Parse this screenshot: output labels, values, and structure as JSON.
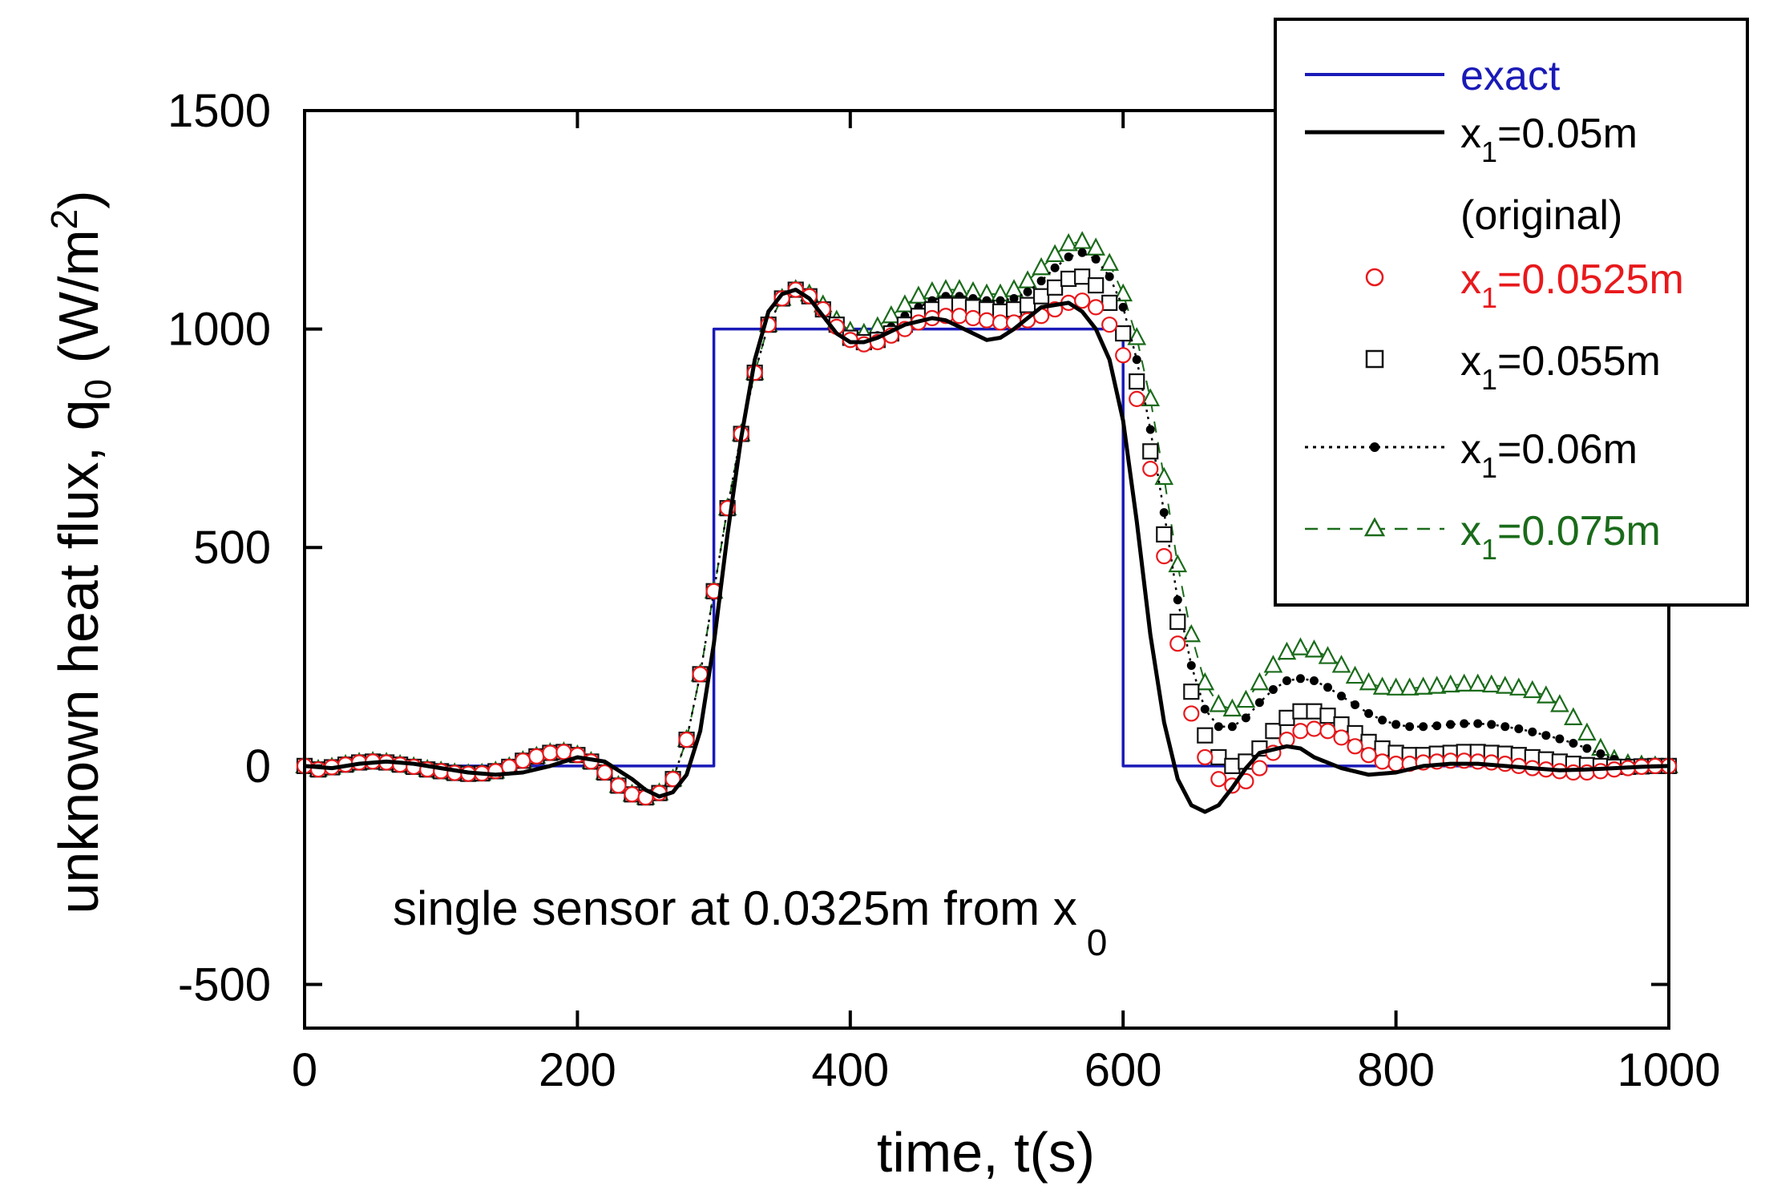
{
  "chart_data": {
    "type": "line",
    "xlabel": "time, t(s)",
    "ylabel_main": "unknown heat flux, q",
    "ylabel_sub": "0",
    "ylabel_unit_pre": " (W/m",
    "ylabel_unit_sup": "2",
    "ylabel_unit_post": ")",
    "xlim": [
      0,
      1000
    ],
    "ylim": [
      -600,
      1500
    ],
    "xticks": [
      0,
      200,
      400,
      600,
      800,
      1000
    ],
    "yticks": [
      -500,
      0,
      500,
      1000,
      1500
    ],
    "grid": false,
    "legend_position": "top-right",
    "annotation": {
      "text": "single sensor  at 0.0325m from x",
      "sub": "0"
    },
    "legend": [
      {
        "id": "exact",
        "main": "exact",
        "sub": "",
        "rest": "",
        "extra": ""
      },
      {
        "id": "x050",
        "main": "x",
        "sub": "1",
        "rest": "=0.05m",
        "extra": "(original)"
      },
      {
        "id": "x0525",
        "main": "x",
        "sub": "1",
        "rest": "=0.0525m",
        "extra": ""
      },
      {
        "id": "x055",
        "main": "x",
        "sub": "1",
        "rest": "=0.055m",
        "extra": ""
      },
      {
        "id": "x060",
        "main": "x",
        "sub": "1",
        "rest": "=0.06m",
        "extra": ""
      },
      {
        "id": "x075",
        "main": "x",
        "sub": "1",
        "rest": "=0.075m",
        "extra": ""
      }
    ],
    "series": [
      {
        "id": "exact",
        "color": "#1a1ab8",
        "style": "solid",
        "marker": "none",
        "x": [
          0,
          300,
          300,
          600,
          600,
          1000
        ],
        "y": [
          0,
          0,
          1000,
          1000,
          0,
          0
        ]
      },
      {
        "id": "x050",
        "color": "#000000",
        "style": "solid",
        "marker": "none",
        "x": [
          0,
          20,
          40,
          60,
          80,
          100,
          120,
          140,
          160,
          180,
          200,
          220,
          240,
          250,
          260,
          270,
          280,
          290,
          300,
          310,
          320,
          330,
          340,
          350,
          360,
          370,
          380,
          390,
          400,
          410,
          420,
          440,
          460,
          470,
          480,
          500,
          510,
          520,
          540,
          560,
          570,
          580,
          590,
          600,
          610,
          620,
          630,
          640,
          650,
          660,
          670,
          680,
          690,
          700,
          720,
          730,
          740,
          760,
          780,
          800,
          820,
          840,
          860,
          880,
          900,
          920,
          940,
          960,
          980,
          1000
        ],
        "y": [
          0,
          -5,
          5,
          10,
          5,
          -5,
          -15,
          -20,
          -15,
          0,
          20,
          10,
          -30,
          -55,
          -70,
          -60,
          -20,
          80,
          280,
          530,
          750,
          930,
          1040,
          1080,
          1090,
          1070,
          1030,
          990,
          970,
          970,
          980,
          1010,
          1025,
          1020,
          1005,
          975,
          980,
          1000,
          1050,
          1060,
          1040,
          1000,
          930,
          790,
          560,
          300,
          100,
          -30,
          -90,
          -105,
          -90,
          -50,
          -5,
          30,
          45,
          40,
          20,
          -5,
          -20,
          -15,
          0,
          5,
          5,
          0,
          -5,
          -10,
          -8,
          -5,
          -2,
          0
        ]
      },
      {
        "id": "x0525",
        "color": "#e8191c",
        "style": "none",
        "marker": "circle",
        "x": [
          0,
          10,
          20,
          30,
          40,
          50,
          60,
          70,
          80,
          90,
          100,
          110,
          120,
          130,
          140,
          150,
          160,
          170,
          180,
          190,
          200,
          210,
          220,
          230,
          240,
          250,
          260,
          270,
          280,
          290,
          300,
          310,
          320,
          330,
          340,
          350,
          360,
          370,
          380,
          390,
          400,
          410,
          420,
          430,
          440,
          450,
          460,
          470,
          480,
          490,
          500,
          510,
          520,
          530,
          540,
          550,
          560,
          570,
          580,
          590,
          600,
          610,
          620,
          630,
          640,
          650,
          660,
          670,
          680,
          690,
          700,
          710,
          720,
          730,
          740,
          750,
          760,
          770,
          780,
          790,
          800,
          810,
          820,
          830,
          840,
          850,
          860,
          870,
          880,
          890,
          900,
          910,
          920,
          930,
          940,
          950,
          960,
          970,
          980,
          990,
          1000
        ],
        "y": [
          0,
          -8,
          -3,
          3,
          8,
          10,
          8,
          3,
          -2,
          -8,
          -12,
          -16,
          -18,
          -17,
          -12,
          -2,
          12,
          22,
          30,
          32,
          25,
          10,
          -15,
          -45,
          -65,
          -72,
          -62,
          -30,
          60,
          210,
          400,
          590,
          760,
          900,
          1010,
          1070,
          1090,
          1075,
          1045,
          1005,
          975,
          965,
          970,
          985,
          1000,
          1015,
          1025,
          1030,
          1030,
          1025,
          1020,
          1015,
          1015,
          1020,
          1030,
          1045,
          1060,
          1065,
          1050,
          1010,
          940,
          840,
          680,
          480,
          280,
          120,
          20,
          -30,
          -45,
          -35,
          -5,
          30,
          60,
          80,
          85,
          80,
          65,
          45,
          25,
          10,
          5,
          5,
          8,
          10,
          12,
          12,
          10,
          8,
          5,
          0,
          -5,
          -8,
          -12,
          -15,
          -15,
          -12,
          -8,
          -5,
          -2,
          0,
          0
        ]
      },
      {
        "id": "x055",
        "color": "#111111",
        "style": "none",
        "marker": "square",
        "x": [
          0,
          10,
          20,
          30,
          40,
          50,
          60,
          70,
          80,
          90,
          100,
          110,
          120,
          130,
          140,
          150,
          160,
          170,
          180,
          190,
          200,
          210,
          220,
          230,
          240,
          250,
          260,
          270,
          280,
          290,
          300,
          310,
          320,
          330,
          340,
          350,
          360,
          370,
          380,
          390,
          400,
          410,
          420,
          430,
          440,
          450,
          460,
          470,
          480,
          490,
          500,
          510,
          520,
          530,
          540,
          550,
          560,
          570,
          580,
          590,
          600,
          610,
          620,
          630,
          640,
          650,
          660,
          670,
          680,
          690,
          700,
          710,
          720,
          730,
          740,
          750,
          760,
          770,
          780,
          790,
          800,
          810,
          820,
          830,
          840,
          850,
          860,
          870,
          880,
          890,
          900,
          910,
          920,
          930,
          940,
          950,
          960,
          970,
          980,
          990,
          1000
        ],
        "y": [
          0,
          -8,
          -3,
          3,
          8,
          10,
          8,
          3,
          -2,
          -8,
          -12,
          -16,
          -18,
          -17,
          -12,
          -2,
          12,
          22,
          30,
          32,
          25,
          10,
          -15,
          -45,
          -65,
          -72,
          -62,
          -30,
          60,
          210,
          400,
          590,
          760,
          900,
          1010,
          1070,
          1090,
          1075,
          1045,
          1010,
          980,
          970,
          975,
          990,
          1010,
          1030,
          1045,
          1055,
          1055,
          1050,
          1045,
          1040,
          1045,
          1055,
          1075,
          1095,
          1115,
          1120,
          1100,
          1060,
          990,
          880,
          720,
          530,
          330,
          170,
          70,
          20,
          0,
          10,
          40,
          80,
          110,
          125,
          125,
          115,
          95,
          75,
          55,
          40,
          30,
          25,
          25,
          28,
          30,
          32,
          32,
          30,
          28,
          25,
          20,
          15,
          10,
          5,
          2,
          0,
          -2,
          -2,
          -1,
          0,
          0
        ]
      },
      {
        "id": "x060",
        "color": "#000000",
        "style": "dotted",
        "marker": "dot",
        "x": [
          0,
          10,
          20,
          30,
          40,
          50,
          60,
          70,
          80,
          90,
          100,
          110,
          120,
          130,
          140,
          150,
          160,
          170,
          180,
          190,
          200,
          210,
          220,
          230,
          240,
          250,
          260,
          270,
          280,
          290,
          300,
          310,
          320,
          330,
          340,
          350,
          360,
          370,
          380,
          390,
          400,
          410,
          420,
          430,
          440,
          450,
          460,
          470,
          480,
          490,
          500,
          510,
          520,
          530,
          540,
          550,
          560,
          570,
          580,
          590,
          600,
          610,
          620,
          630,
          640,
          650,
          660,
          670,
          680,
          690,
          700,
          710,
          720,
          730,
          740,
          750,
          760,
          770,
          780,
          790,
          800,
          810,
          820,
          830,
          840,
          850,
          860,
          870,
          880,
          890,
          900,
          910,
          920,
          930,
          940,
          950,
          960,
          970,
          980,
          990,
          1000
        ],
        "y": [
          0,
          -8,
          -3,
          3,
          8,
          10,
          8,
          3,
          -2,
          -8,
          -12,
          -16,
          -18,
          -17,
          -12,
          -2,
          12,
          22,
          30,
          32,
          25,
          10,
          -15,
          -45,
          -65,
          -72,
          -62,
          -30,
          60,
          210,
          400,
          590,
          760,
          900,
          1010,
          1070,
          1090,
          1075,
          1045,
          1010,
          980,
          975,
          985,
          1005,
          1030,
          1050,
          1065,
          1075,
          1075,
          1070,
          1065,
          1065,
          1070,
          1085,
          1110,
          1140,
          1165,
          1175,
          1160,
          1120,
          1050,
          930,
          770,
          580,
          380,
          230,
          130,
          90,
          90,
          110,
          145,
          175,
          195,
          200,
          195,
          180,
          160,
          140,
          120,
          105,
          95,
          90,
          90,
          92,
          95,
          97,
          97,
          95,
          90,
          85,
          78,
          70,
          62,
          52,
          40,
          28,
          15,
          8,
          3,
          1,
          0
        ]
      },
      {
        "id": "x075",
        "color": "#1a6b1a",
        "style": "dashed",
        "marker": "triangle",
        "x": [
          0,
          10,
          20,
          30,
          40,
          50,
          60,
          70,
          80,
          90,
          100,
          110,
          120,
          130,
          140,
          150,
          160,
          170,
          180,
          190,
          200,
          210,
          220,
          230,
          240,
          250,
          260,
          270,
          280,
          290,
          300,
          310,
          320,
          330,
          340,
          350,
          360,
          370,
          380,
          390,
          400,
          410,
          420,
          430,
          440,
          450,
          460,
          470,
          480,
          490,
          500,
          510,
          520,
          530,
          540,
          550,
          560,
          570,
          580,
          590,
          600,
          610,
          620,
          630,
          640,
          650,
          660,
          670,
          680,
          690,
          700,
          710,
          720,
          730,
          740,
          750,
          760,
          770,
          780,
          790,
          800,
          810,
          820,
          830,
          840,
          850,
          860,
          870,
          880,
          890,
          900,
          910,
          920,
          930,
          940,
          950,
          960,
          970,
          980,
          990,
          1000
        ],
        "y": [
          0,
          -8,
          -3,
          3,
          8,
          10,
          8,
          3,
          -2,
          -8,
          -12,
          -16,
          -18,
          -17,
          -12,
          -2,
          12,
          22,
          30,
          32,
          25,
          10,
          -15,
          -45,
          -65,
          -72,
          -62,
          -30,
          60,
          210,
          400,
          590,
          760,
          900,
          1010,
          1070,
          1090,
          1080,
          1055,
          1020,
          995,
          990,
          1005,
          1030,
          1055,
          1075,
          1085,
          1090,
          1090,
          1085,
          1080,
          1080,
          1090,
          1110,
          1140,
          1170,
          1195,
          1200,
          1185,
          1150,
          1080,
          980,
          840,
          660,
          460,
          300,
          190,
          140,
          130,
          150,
          190,
          230,
          260,
          270,
          265,
          250,
          230,
          205,
          190,
          180,
          178,
          178,
          180,
          182,
          185,
          187,
          187,
          185,
          182,
          178,
          172,
          160,
          140,
          110,
          75,
          40,
          15,
          5,
          2,
          0,
          0
        ]
      }
    ]
  }
}
